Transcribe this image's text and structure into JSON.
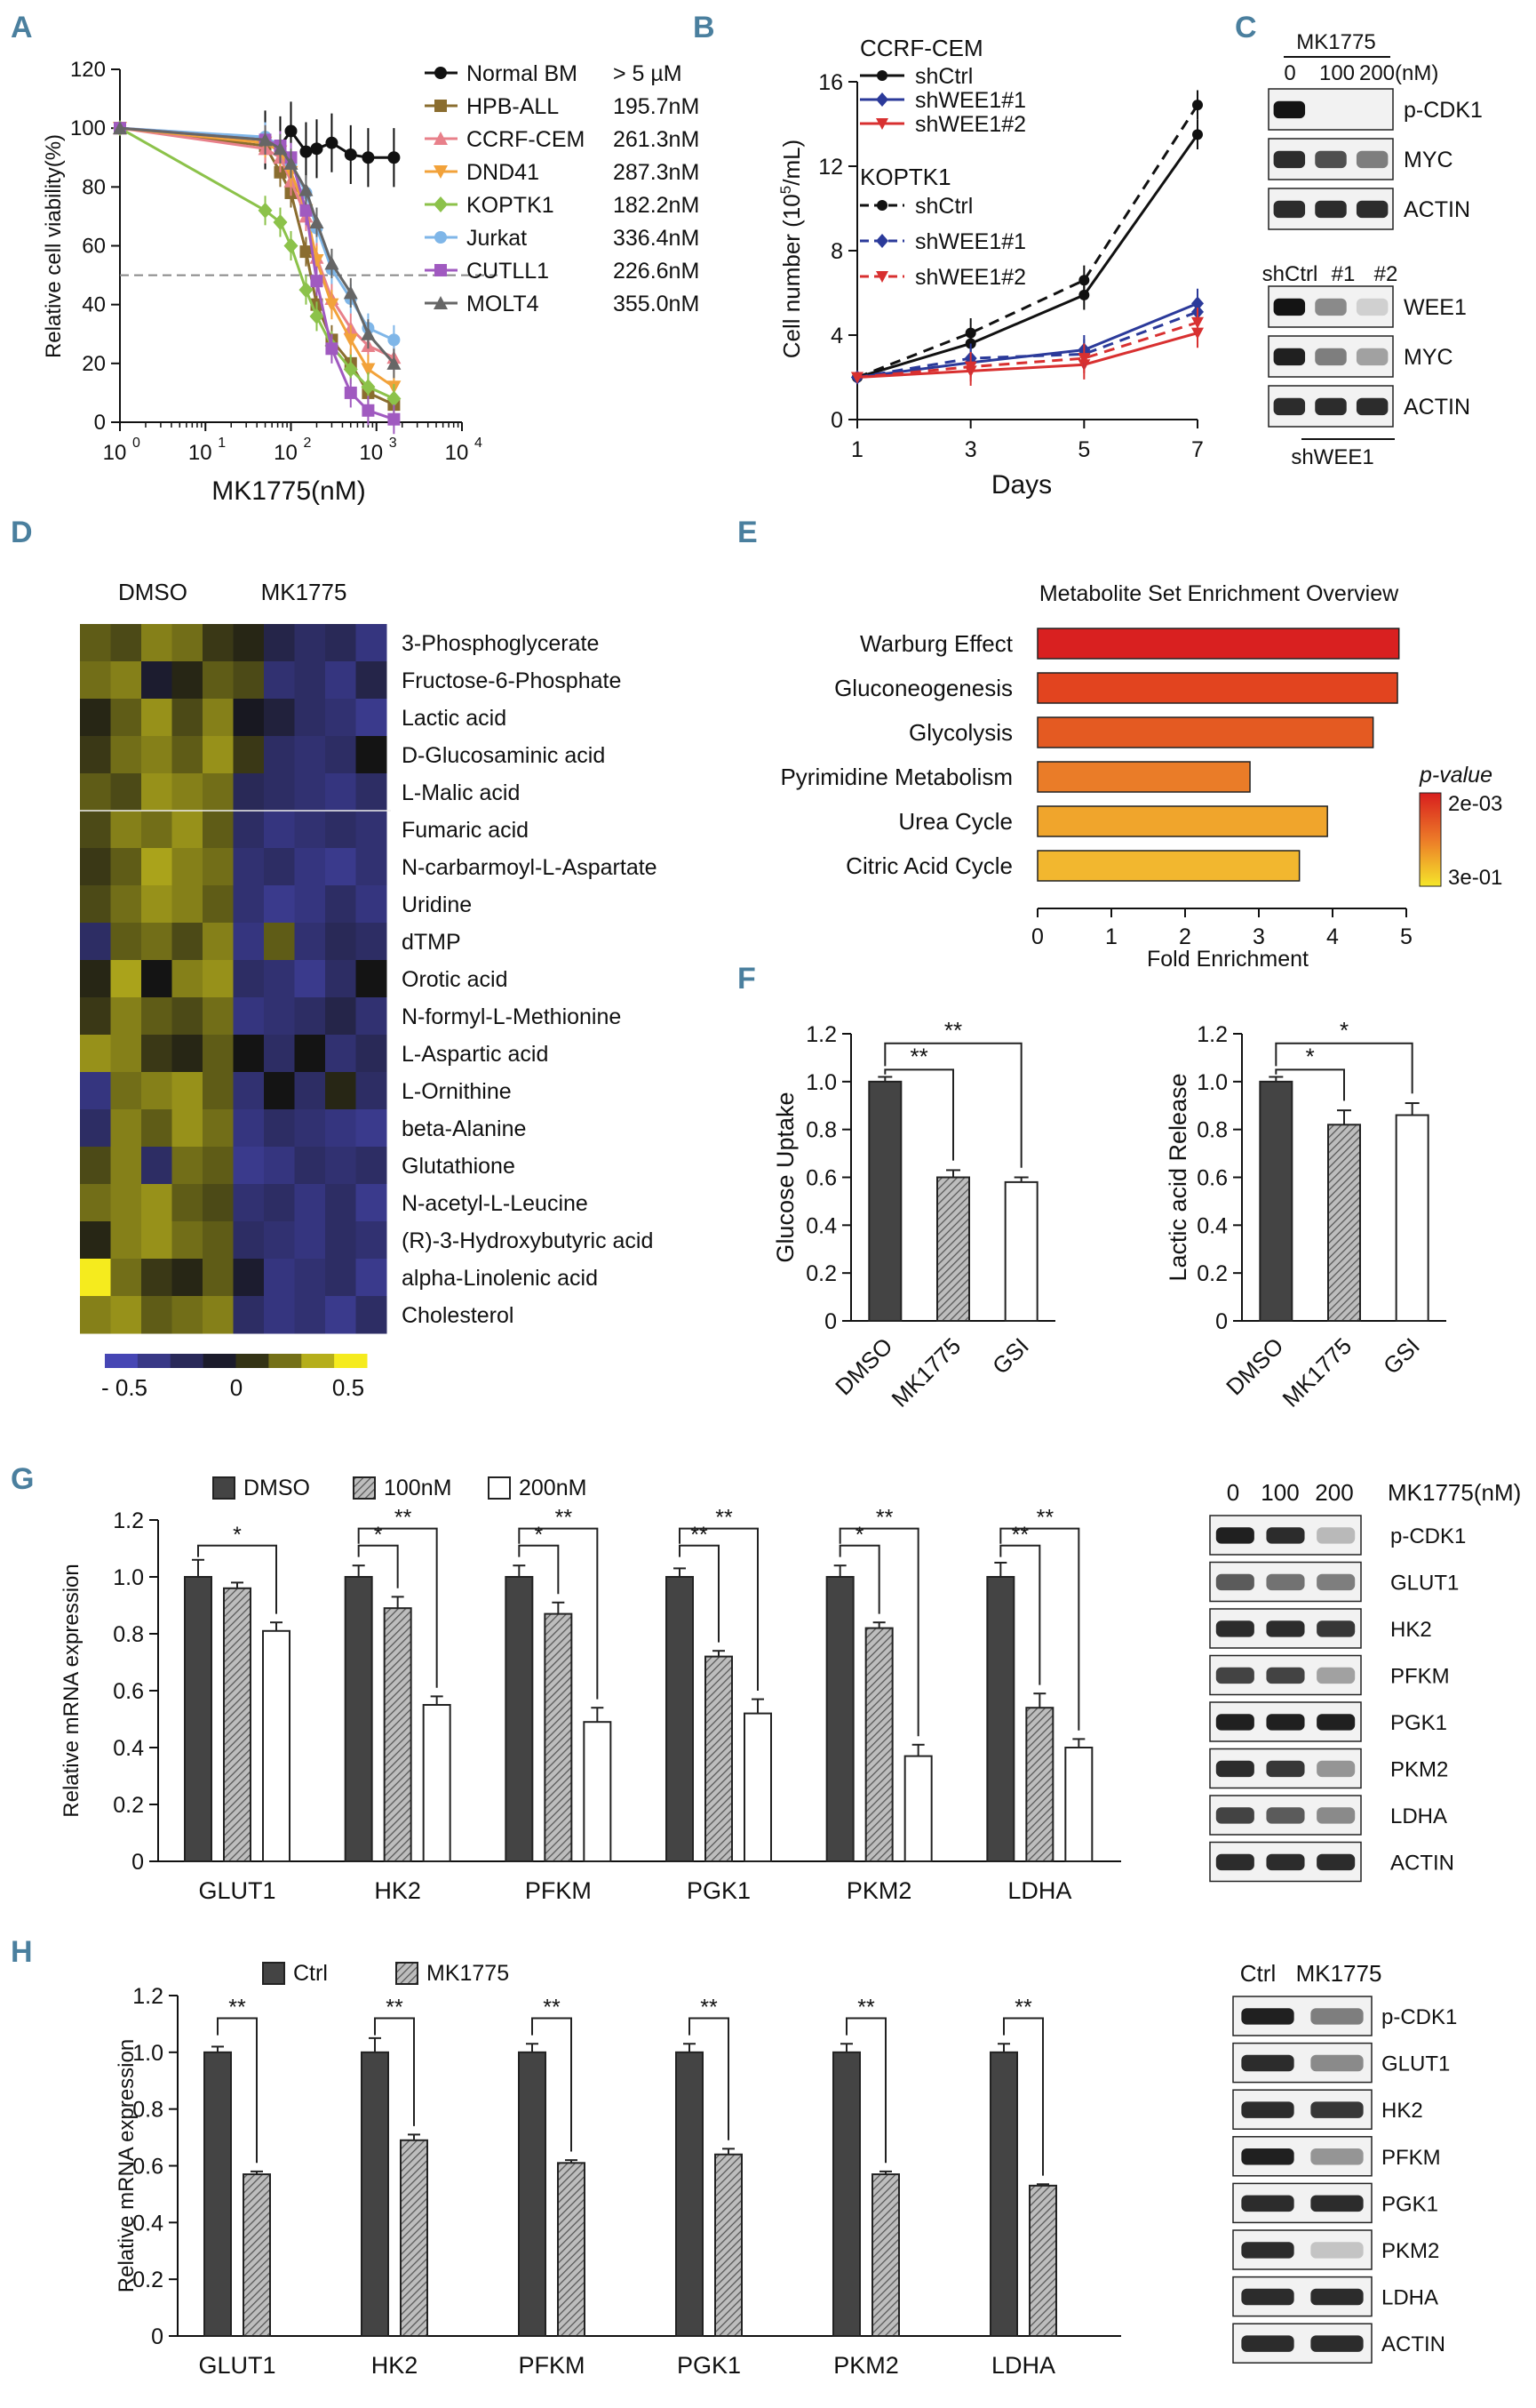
{
  "panel_letters": {
    "A": "A",
    "B": "B",
    "C": "C",
    "D": "D",
    "E": "E",
    "F": "F",
    "G": "G",
    "H": "H"
  },
  "colors": {
    "normal_bm": "#111111",
    "hpb_all": "#8a6d2f",
    "ccrf_cem": "#e8808a",
    "dnd41": "#f2a23a",
    "koptk1": "#8cc24a",
    "jurkat": "#7fb6e8",
    "cutll1": "#a05ac0",
    "molt4": "#666666",
    "shctrl": "#111111",
    "shwee1_1": "#2b3a9a",
    "shwee1_2": "#d83030",
    "dmso_bar": "#444444",
    "hatch_bar": "#888888",
    "open_bar": "#ffffff",
    "enrich_high": "#d81e1e",
    "enrich_low": "#f5e62a"
  },
  "chart_data": [
    {
      "id": "A",
      "type": "line",
      "xlabel": "MK1775(nM)",
      "ylabel": "Relative cell viability(%)",
      "xscale": "log",
      "xlim": [
        1,
        10000
      ],
      "ylim": [
        0,
        120
      ],
      "xticks": [
        "10",
        "10",
        "10",
        "10",
        "10"
      ],
      "xtick_exponents": [
        "0",
        "1",
        "2",
        "3",
        "4"
      ],
      "yticks": [
        "0",
        "20",
        "40",
        "60",
        "80",
        "100",
        "120"
      ],
      "reference_line": 50,
      "series": [
        {
          "name": "Normal BM",
          "ic50": "> 5 µM",
          "x": [
            1,
            50,
            75,
            100,
            150,
            200,
            300,
            500,
            800,
            1600
          ],
          "y": [
            100,
            96,
            94,
            99,
            92,
            93,
            95,
            91,
            90,
            90
          ]
        },
        {
          "name": "HPB-ALL",
          "ic50": "195.7nM",
          "x": [
            1,
            50,
            75,
            100,
            150,
            200,
            300,
            500,
            800,
            1600
          ],
          "y": [
            100,
            94,
            85,
            78,
            58,
            40,
            28,
            20,
            10,
            6
          ]
        },
        {
          "name": "CCRF-CEM",
          "ic50": "261.3nM",
          "x": [
            1,
            50,
            75,
            100,
            150,
            200,
            300,
            500,
            800,
            1600
          ],
          "y": [
            100,
            93,
            90,
            82,
            70,
            56,
            42,
            32,
            26,
            22
          ]
        },
        {
          "name": "DND41",
          "ic50": "287.3nM",
          "x": [
            1,
            50,
            75,
            100,
            150,
            200,
            300,
            500,
            800,
            1600
          ],
          "y": [
            100,
            95,
            92,
            85,
            72,
            55,
            40,
            28,
            18,
            12
          ]
        },
        {
          "name": "KOPTK1",
          "ic50": "182.2nM",
          "x": [
            1,
            50,
            75,
            100,
            150,
            200,
            300,
            500,
            800,
            1600
          ],
          "y": [
            100,
            72,
            68,
            60,
            45,
            36,
            26,
            18,
            12,
            8
          ]
        },
        {
          "name": "Jurkat",
          "ic50": "336.4nM",
          "x": [
            1,
            50,
            75,
            100,
            150,
            200,
            300,
            500,
            800,
            1600
          ],
          "y": [
            100,
            97,
            94,
            88,
            78,
            66,
            52,
            42,
            32,
            28
          ]
        },
        {
          "name": "CUTLL1",
          "ic50": "226.6nM",
          "x": [
            1,
            50,
            75,
            100,
            150,
            200,
            300,
            500,
            800,
            1600
          ],
          "y": [
            100,
            96,
            94,
            90,
            72,
            48,
            25,
            10,
            4,
            1
          ]
        },
        {
          "name": "MOLT4",
          "ic50": "355.0nM",
          "x": [
            1,
            50,
            75,
            100,
            150,
            200,
            300,
            500,
            800,
            1600
          ],
          "y": [
            100,
            96,
            93,
            88,
            79,
            68,
            54,
            44,
            30,
            20
          ]
        }
      ]
    },
    {
      "id": "B",
      "type": "line",
      "xlabel": "Days",
      "ylabel": "Cell number (10",
      "ylabel_sup": "5",
      "ylabel_tail": "/mL)",
      "xlim": [
        1,
        7
      ],
      "ylim": [
        0,
        16
      ],
      "xticks": [
        "1",
        "3",
        "5",
        "7"
      ],
      "yticks": [
        "0",
        "4",
        "8",
        "12",
        "16"
      ],
      "group_labels": [
        "CCRF-CEM",
        "KOPTK1"
      ],
      "series": [
        {
          "name": "shCtrl",
          "group": "CCRF-CEM",
          "style": "solid",
          "x": [
            1,
            3,
            5,
            7
          ],
          "y": [
            2,
            3.6,
            5.9,
            13.5
          ]
        },
        {
          "name": "shWEE1#1",
          "group": "CCRF-CEM",
          "style": "solid",
          "x": [
            1,
            3,
            5,
            7
          ],
          "y": [
            2,
            2.7,
            3.3,
            5.5
          ]
        },
        {
          "name": "shWEE1#2",
          "group": "CCRF-CEM",
          "style": "solid",
          "x": [
            1,
            3,
            5,
            7
          ],
          "y": [
            2,
            2.3,
            2.6,
            4.1
          ]
        },
        {
          "name": "shCtrl",
          "group": "KOPTK1",
          "style": "dashed",
          "x": [
            1,
            3,
            5,
            7
          ],
          "y": [
            2,
            4.1,
            6.6,
            14.9
          ]
        },
        {
          "name": "shWEE1#1",
          "group": "KOPTK1",
          "style": "dashed",
          "x": [
            1,
            3,
            5,
            7
          ],
          "y": [
            2,
            2.9,
            3.1,
            5.1
          ]
        },
        {
          "name": "shWEE1#2",
          "group": "KOPTK1",
          "style": "dashed",
          "x": [
            1,
            3,
            5,
            7
          ],
          "y": [
            2,
            2.5,
            2.9,
            4.6
          ]
        }
      ]
    },
    {
      "id": "D",
      "type": "heatmap",
      "column_groups": [
        "DMSO",
        "MK1775"
      ],
      "colorbar_ticks": [
        "- 0.5",
        "0",
        "0.5"
      ],
      "rows": [
        "3-Phosphoglycerate",
        "Fructose-6-Phosphate",
        "Lactic acid",
        "D-Glucosaminic acid",
        "L-Malic acid",
        "Fumaric acid",
        "N-carbarmoyl-L-Aspartate",
        "Uridine",
        "dTMP",
        "Orotic acid",
        "N-formyl-L-Methionine",
        "L-Aspartic acid",
        "L-Ornithine",
        "beta-Alanine",
        "Glutathione",
        "N-acetyl-L-Leucine",
        "(R)-3-Hydroxybutyric acid",
        "alpha-Linolenic acid",
        "Cholesterol"
      ],
      "values": [
        [
          0.2,
          0.15,
          0.3,
          0.25,
          0.1,
          0.05,
          -0.2,
          -0.3,
          -0.25,
          -0.4
        ],
        [
          0.25,
          0.3,
          -0.1,
          0.05,
          0.2,
          0.15,
          -0.35,
          -0.3,
          -0.4,
          -0.2
        ],
        [
          0.05,
          0.2,
          0.35,
          0.15,
          0.3,
          -0.05,
          -0.15,
          -0.3,
          -0.35,
          -0.45
        ],
        [
          0.1,
          0.25,
          0.3,
          0.2,
          0.35,
          0.1,
          -0.3,
          -0.35,
          -0.3,
          0.0
        ],
        [
          0.2,
          0.15,
          0.35,
          0.3,
          0.25,
          -0.25,
          -0.3,
          -0.35,
          -0.4,
          -0.3
        ],
        [
          0.15,
          0.3,
          0.25,
          0.35,
          0.2,
          -0.3,
          -0.4,
          -0.35,
          -0.3,
          -0.35
        ],
        [
          0.1,
          0.2,
          0.4,
          0.3,
          0.25,
          -0.35,
          -0.3,
          -0.4,
          -0.45,
          -0.35
        ],
        [
          0.15,
          0.25,
          0.35,
          0.3,
          0.2,
          -0.35,
          -0.45,
          -0.4,
          -0.3,
          -0.4
        ],
        [
          -0.3,
          0.2,
          0.25,
          0.15,
          0.3,
          -0.4,
          0.2,
          -0.35,
          -0.25,
          -0.3
        ],
        [
          0.05,
          0.4,
          0.0,
          0.3,
          0.35,
          -0.3,
          -0.35,
          -0.45,
          -0.3,
          0.0
        ],
        [
          0.1,
          0.3,
          0.2,
          0.15,
          0.25,
          -0.4,
          -0.35,
          -0.3,
          -0.2,
          -0.35
        ],
        [
          0.35,
          0.3,
          0.1,
          0.05,
          0.2,
          0.0,
          -0.3,
          0.0,
          -0.35,
          -0.25
        ],
        [
          -0.4,
          0.25,
          0.3,
          0.35,
          0.2,
          -0.35,
          0.0,
          -0.3,
          0.05,
          -0.3
        ],
        [
          -0.3,
          0.3,
          0.2,
          0.35,
          0.25,
          -0.4,
          -0.3,
          -0.35,
          -0.4,
          -0.45
        ],
        [
          0.15,
          0.3,
          -0.3,
          0.25,
          0.2,
          -0.45,
          -0.4,
          -0.3,
          -0.35,
          -0.3
        ],
        [
          0.25,
          0.3,
          0.35,
          0.2,
          0.15,
          -0.35,
          -0.3,
          -0.4,
          -0.3,
          -0.45
        ],
        [
          0.05,
          0.3,
          0.35,
          0.25,
          0.2,
          -0.3,
          -0.35,
          -0.4,
          -0.3,
          -0.35
        ],
        [
          0.6,
          0.25,
          0.1,
          0.05,
          0.2,
          -0.1,
          -0.4,
          -0.35,
          -0.3,
          -0.45
        ],
        [
          0.3,
          0.35,
          0.2,
          0.25,
          0.3,
          -0.3,
          -0.4,
          -0.35,
          -0.45,
          -0.3
        ]
      ]
    },
    {
      "id": "E",
      "type": "bar",
      "orientation": "horizontal",
      "title": "Metabolite Set Enrichment Overview",
      "xlabel": "Fold Enrichment",
      "xlim": [
        0,
        5
      ],
      "xticks": [
        "0",
        "1",
        "2",
        "3",
        "4",
        "5"
      ],
      "legend_title": "p-value",
      "legend_ticks": [
        "2e-03",
        "3e-01"
      ],
      "categories": [
        "Warburg Effect",
        "Gluconeogenesis",
        "Glycolysis",
        "Pyrimidine Metabolism",
        "Urea Cycle",
        "Citric Acid Cycle"
      ],
      "values": [
        4.9,
        4.88,
        4.55,
        2.88,
        3.93,
        3.55
      ],
      "colors": [
        "#d92020",
        "#e2441f",
        "#e45a22",
        "#ea7c28",
        "#f0a52c",
        "#f2b72f"
      ]
    },
    {
      "id": "F1",
      "type": "bar",
      "ylabel": "Glucose Uptake",
      "ylim": [
        0,
        1.2
      ],
      "yticks": [
        "0",
        "0.2",
        "0.4",
        "0.6",
        "0.8",
        "1.0",
        "1.2"
      ],
      "categories": [
        "DMSO",
        "MK1775",
        "GSI"
      ],
      "values": [
        1.0,
        0.6,
        0.58
      ],
      "errors": [
        0.02,
        0.03,
        0.02
      ],
      "significance": [
        "**",
        "**"
      ]
    },
    {
      "id": "F2",
      "type": "bar",
      "ylabel": "Lactic acid Release",
      "ylim": [
        0,
        1.2
      ],
      "yticks": [
        "0",
        "0.2",
        "0.4",
        "0.6",
        "0.8",
        "1.0",
        "1.2"
      ],
      "categories": [
        "DMSO",
        "MK1775",
        "GSI"
      ],
      "values": [
        1.0,
        0.82,
        0.86
      ],
      "errors": [
        0.02,
        0.06,
        0.05
      ],
      "significance": [
        "*",
        "*"
      ]
    },
    {
      "id": "G",
      "type": "bar",
      "ylabel": "Relative mRNA  expression",
      "ylim": [
        0,
        1.2
      ],
      "yticks": [
        "0",
        "0.2",
        "0.4",
        "0.6",
        "0.8",
        "1.0",
        "1.2"
      ],
      "categories": [
        "GLUT1",
        "HK2",
        "PFKM",
        "PGK1",
        "PKM2",
        "LDHA"
      ],
      "series": [
        {
          "name": "DMSO",
          "values": [
            1.0,
            1.0,
            1.0,
            1.0,
            1.0,
            1.0
          ],
          "errors": [
            0.06,
            0.04,
            0.04,
            0.03,
            0.04,
            0.05
          ]
        },
        {
          "name": "100nM",
          "values": [
            0.96,
            0.89,
            0.87,
            0.72,
            0.82,
            0.54
          ],
          "errors": [
            0.02,
            0.04,
            0.04,
            0.02,
            0.02,
            0.05
          ]
        },
        {
          "name": "200nM",
          "values": [
            0.81,
            0.55,
            0.49,
            0.52,
            0.37,
            0.4
          ],
          "errors": [
            0.03,
            0.03,
            0.05,
            0.05,
            0.04,
            0.03
          ]
        }
      ],
      "significance": [
        [
          "*"
        ],
        [
          "*",
          "**"
        ],
        [
          "*",
          "**"
        ],
        [
          "**",
          "**"
        ],
        [
          "*",
          "**"
        ],
        [
          "**",
          "**"
        ]
      ]
    },
    {
      "id": "H",
      "type": "bar",
      "ylabel": "Relative mRNA  expression",
      "ylim": [
        0,
        1.2
      ],
      "yticks": [
        "0",
        "0.2",
        "0.4",
        "0.6",
        "0.8",
        "1.0",
        "1.2"
      ],
      "categories": [
        "GLUT1",
        "HK2",
        "PFKM",
        "PGK1",
        "PKM2",
        "LDHA"
      ],
      "series": [
        {
          "name": "Ctrl",
          "values": [
            1.0,
            1.0,
            1.0,
            1.0,
            1.0,
            1.0
          ],
          "errors": [
            0.02,
            0.05,
            0.03,
            0.03,
            0.03,
            0.03
          ]
        },
        {
          "name": "MK1775",
          "values": [
            0.57,
            0.69,
            0.61,
            0.64,
            0.57,
            0.53
          ],
          "errors": [
            0.01,
            0.02,
            0.01,
            0.02,
            0.01,
            0.005
          ]
        }
      ],
      "significance": [
        "**",
        "**",
        "**",
        "**",
        "**",
        "**"
      ]
    }
  ],
  "blots": {
    "C_top": {
      "header": "MK1775",
      "unit": "(nM)",
      "lanes": [
        "0",
        "100",
        "200"
      ],
      "rows": [
        "p-CDK1",
        "MYC",
        "ACTIN"
      ],
      "intensity": [
        [
          1.0,
          0.0,
          0.0
        ],
        [
          0.9,
          0.75,
          0.55
        ],
        [
          0.9,
          0.9,
          0.9
        ]
      ]
    },
    "C_bottom": {
      "lanes": [
        "shCtrl",
        "#1",
        "#2"
      ],
      "footer": "shWEE1",
      "rows": [
        "WEE1",
        "MYC",
        "ACTIN"
      ],
      "intensity": [
        [
          1.0,
          0.5,
          0.2
        ],
        [
          0.95,
          0.55,
          0.4
        ],
        [
          0.9,
          0.9,
          0.9
        ]
      ]
    },
    "G": {
      "lanes": [
        "0",
        "100",
        "200"
      ],
      "unit": "MK1775(nM)",
      "rows": [
        "p-CDK1",
        "GLUT1",
        "HK2",
        "PFKM",
        "PGK1",
        "PKM2",
        "LDHA",
        "ACTIN"
      ],
      "intensity": [
        [
          0.95,
          0.9,
          0.3
        ],
        [
          0.7,
          0.6,
          0.55
        ],
        [
          0.9,
          0.9,
          0.85
        ],
        [
          0.8,
          0.8,
          0.4
        ],
        [
          0.95,
          0.95,
          0.95
        ],
        [
          0.9,
          0.85,
          0.45
        ],
        [
          0.8,
          0.7,
          0.5
        ],
        [
          0.9,
          0.9,
          0.9
        ]
      ]
    },
    "H": {
      "lanes": [
        "Ctrl",
        "MK1775"
      ],
      "rows": [
        "p-CDK1",
        "GLUT1",
        "HK2",
        "PFKM",
        "PGK1",
        "PKM2",
        "LDHA",
        "ACTIN"
      ],
      "intensity": [
        [
          0.95,
          0.55
        ],
        [
          0.9,
          0.5
        ],
        [
          0.9,
          0.85
        ],
        [
          0.95,
          0.45
        ],
        [
          0.9,
          0.9
        ],
        [
          0.9,
          0.25
        ],
        [
          0.9,
          0.9
        ],
        [
          0.9,
          0.9
        ]
      ]
    }
  }
}
